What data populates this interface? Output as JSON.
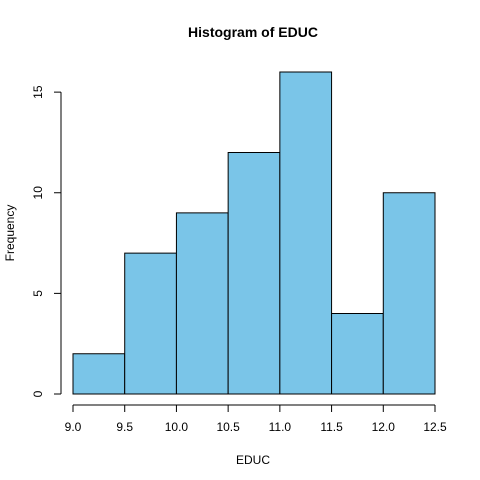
{
  "chart_data": {
    "type": "bar",
    "title": "Histogram of EDUC",
    "xlabel": "EDUC",
    "ylabel": "Frequency",
    "bin_edges": [
      9.0,
      9.5,
      10.0,
      10.5,
      11.0,
      11.5,
      12.0,
      12.5
    ],
    "values": [
      2,
      7,
      9,
      12,
      16,
      4,
      10
    ],
    "xlim": [
      9.0,
      12.5
    ],
    "ylim": [
      0,
      16
    ],
    "x_ticks": [
      "9.0",
      "9.5",
      "10.0",
      "10.5",
      "11.0",
      "11.5",
      "12.0",
      "12.5"
    ],
    "y_ticks": [
      "0",
      "5",
      "10",
      "15"
    ],
    "bar_color": "#7AC5E8",
    "grid": false,
    "legend": "none"
  }
}
